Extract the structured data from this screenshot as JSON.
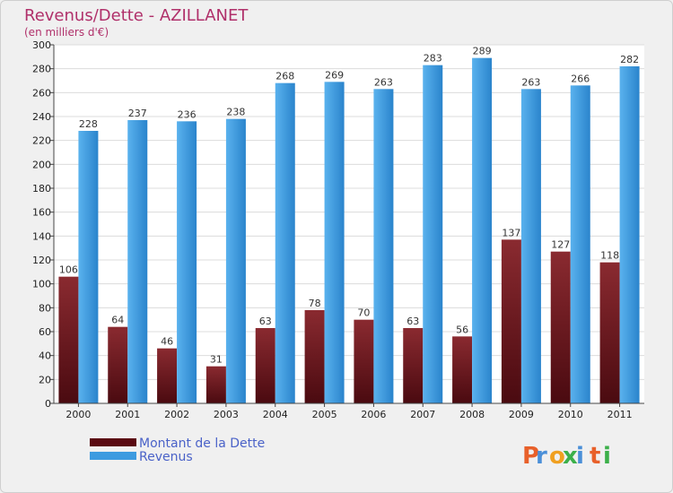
{
  "chart_data": {
    "type": "bar",
    "title": "Revenus/Dette - AZILLANET",
    "subtitle": "(en milliers d'€)",
    "categories": [
      "2000",
      "2001",
      "2002",
      "2003",
      "2004",
      "2005",
      "2006",
      "2007",
      "2008",
      "2009",
      "2010",
      "2011"
    ],
    "series": [
      {
        "name": "Montant de la Dette",
        "values": [
          106,
          64,
          46,
          31,
          63,
          78,
          70,
          63,
          56,
          137,
          127,
          118
        ],
        "color": "#7a1a22"
      },
      {
        "name": "Revenus",
        "values": [
          228,
          237,
          236,
          238,
          268,
          269,
          263,
          283,
          289,
          263,
          266,
          282
        ],
        "color": "#3d9be0"
      }
    ],
    "ylim": [
      0,
      300
    ],
    "yticks": [
      0,
      20,
      40,
      60,
      80,
      100,
      120,
      140,
      160,
      180,
      200,
      220,
      240,
      260,
      280,
      300
    ],
    "grid": true,
    "legend": "bottom-left"
  },
  "brand": {
    "letters": [
      "P",
      "r",
      "o",
      "x",
      "i",
      "t",
      "i"
    ],
    "colors": [
      "#e8602a",
      "#4a8fd8",
      "#f0a020",
      "#3cb04a",
      "#4a8fd8",
      "#e8602a",
      "#3cb04a"
    ]
  }
}
